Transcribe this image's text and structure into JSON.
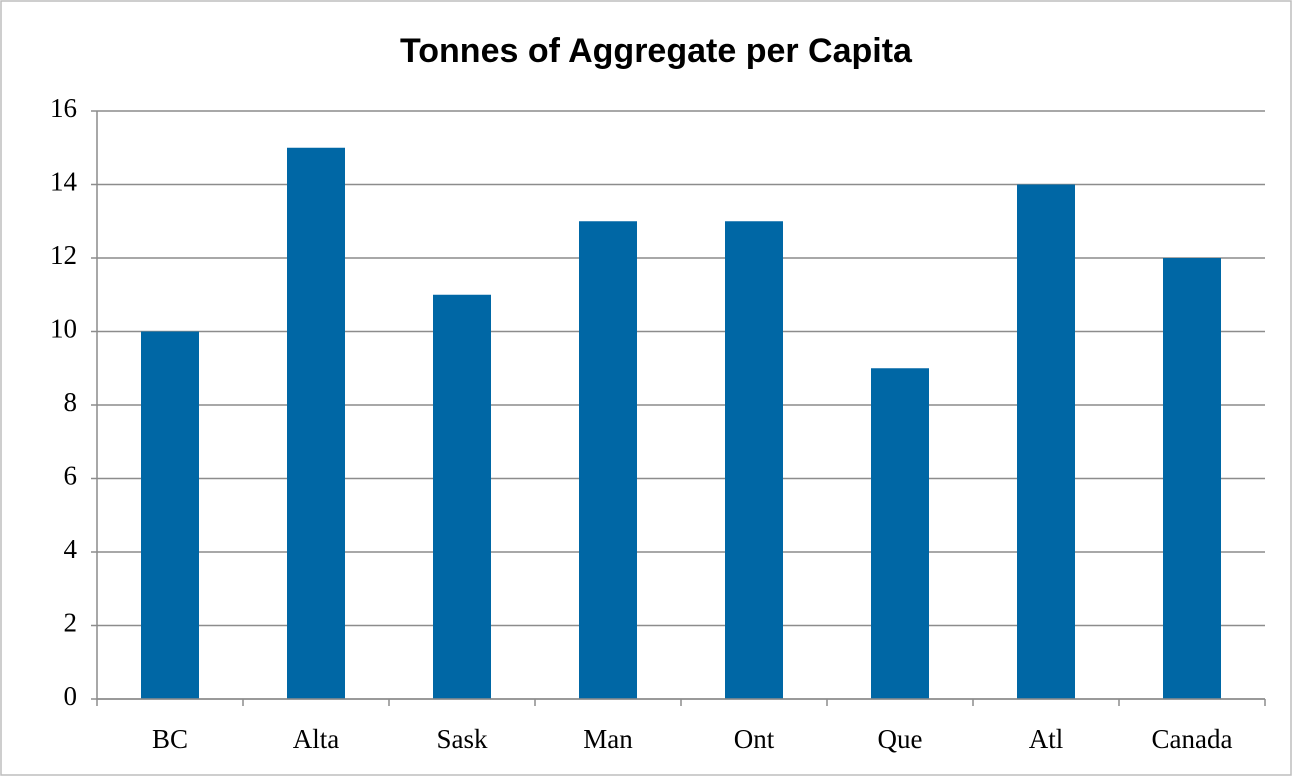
{
  "chart_data": {
    "type": "bar",
    "title": "Tonnes of Aggregate per Capita",
    "categories": [
      "BC",
      "Alta",
      "Sask",
      "Man",
      "Ont",
      "Que",
      "Atl",
      "Canada"
    ],
    "values": [
      10,
      15,
      11,
      13,
      13,
      9,
      14,
      12
    ],
    "color": "#0067a5",
    "ylim": [
      0,
      16
    ],
    "yticks": [
      0,
      2,
      4,
      6,
      8,
      10,
      12,
      14,
      16
    ],
    "grid": true
  }
}
